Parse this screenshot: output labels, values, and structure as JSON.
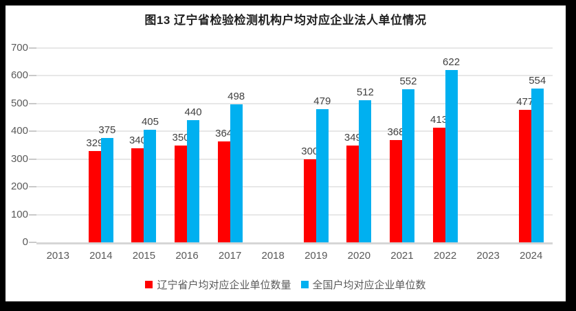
{
  "title": "图13 辽宁省检验检测机构户均对应企业法人单位情况",
  "colors": {
    "series_liaoning": "#ff0000",
    "series_national": "#00b0f0",
    "gridline": "#e7e7e7",
    "axis_line": "#d6d6d6",
    "axis_text": "#595959",
    "data_label_text": "#404040",
    "frame_border": "#000000"
  },
  "chart_data": {
    "type": "bar",
    "title": "图13 辽宁省检验检测机构户均对应企业法人单位情况",
    "categories": [
      "2013",
      "2014",
      "2015",
      "2016",
      "2017",
      "2018",
      "2019",
      "2020",
      "2021",
      "2022",
      "2023",
      "2024"
    ],
    "series": [
      {
        "name": "辽宁省户均对应企业单位数量",
        "color": "#ff0000",
        "values": [
          null,
          329,
          340,
          350,
          364,
          null,
          300,
          349,
          368,
          413,
          null,
          477
        ]
      },
      {
        "name": "全国户均对应企业单位数",
        "color": "#00b0f0",
        "values": [
          null,
          375,
          405,
          440,
          498,
          null,
          479,
          512,
          552,
          622,
          null,
          554
        ]
      }
    ],
    "xlabel": "",
    "ylabel": "",
    "ylim": [
      0,
      700
    ],
    "y_ticks": [
      0,
      100,
      200,
      300,
      400,
      500,
      600,
      700
    ],
    "grid": "horizontal",
    "legend_position": "bottom",
    "data_labels": true
  }
}
